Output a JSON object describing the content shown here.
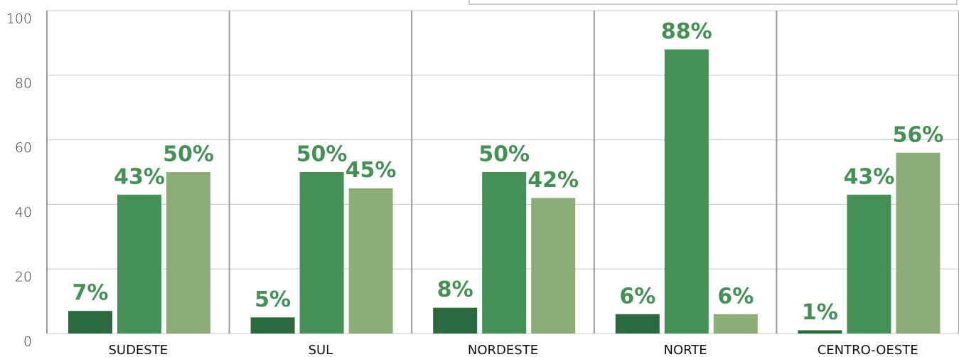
{
  "chart_data": {
    "type": "bar",
    "categories": [
      "SUDESTE",
      "SUL",
      "NORDESTE",
      "NORTE",
      "CENTRO-OESTE"
    ],
    "series": [
      {
        "color": "#2a6a3e",
        "values": [
          7,
          5,
          8,
          6,
          1
        ],
        "value_labels": [
          "7%",
          "5%",
          "8%",
          "6%",
          "1%"
        ]
      },
      {
        "color": "#449055",
        "values": [
          43,
          50,
          50,
          88,
          43
        ],
        "value_labels": [
          "43%",
          "50%",
          "50%",
          "88%",
          "43%"
        ]
      },
      {
        "color": "#8cae76",
        "values": [
          50,
          45,
          42,
          6,
          56
        ],
        "value_labels": [
          "50%",
          "45%",
          "42%",
          "6%",
          "56%"
        ]
      }
    ],
    "ylim": [
      0,
      100
    ],
    "yticks": [
      0,
      20,
      40,
      60,
      80,
      100
    ],
    "grid": true
  }
}
